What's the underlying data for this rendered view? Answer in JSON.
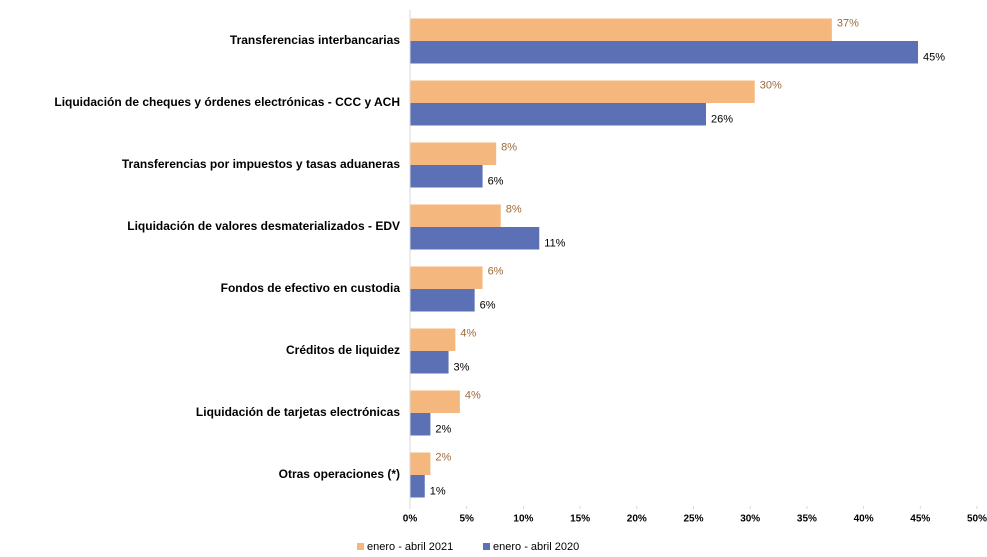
{
  "chart_data": {
    "type": "barh",
    "categories": [
      "Transferencias interbancarias",
      "Liquidación de cheques y órdenes electrónicas - CCC y ACH",
      "Transferencias por impuestos y tasas aduaneras",
      "Liquidación de valores desmaterializados - EDV",
      "Fondos de efectivo en custodia",
      "Créditos de liquidez",
      "Liquidación de tarjetas electrónicas",
      "Otras operaciones (*)"
    ],
    "series": [
      {
        "name": "enero - abril 2021",
        "color": "#f4b77e",
        "label_color": "#9c6a3a",
        "values": [
          37.2,
          30.4,
          7.6,
          8.0,
          6.4,
          4.0,
          4.4,
          1.8
        ],
        "value_labels": [
          "37%",
          "30%",
          "8%",
          "8%",
          "6%",
          "4%",
          "4%",
          "2%"
        ]
      },
      {
        "name": "enero - abril 2020",
        "color": "#5b70b5",
        "label_color": "#000000",
        "values": [
          44.8,
          26.1,
          6.4,
          11.4,
          5.7,
          3.4,
          1.8,
          1.3
        ],
        "value_labels": [
          "45%",
          "26%",
          "6%",
          "11%",
          "6%",
          "3%",
          "2%",
          "1%"
        ]
      }
    ],
    "xlim": [
      0,
      50
    ],
    "xticks": [
      {
        "value": 0,
        "label": "0%"
      },
      {
        "value": 5,
        "label": "5%"
      },
      {
        "value": 10,
        "label": "10%"
      },
      {
        "value": 15,
        "label": "15%"
      },
      {
        "value": 20,
        "label": "20%"
      },
      {
        "value": 25,
        "label": "25%"
      },
      {
        "value": 30,
        "label": "30%"
      },
      {
        "value": 35,
        "label": "35%"
      },
      {
        "value": 40,
        "label": "40%"
      },
      {
        "value": 45,
        "label": "45%"
      },
      {
        "value": 50,
        "label": "50%"
      }
    ],
    "legend": "bottom"
  }
}
